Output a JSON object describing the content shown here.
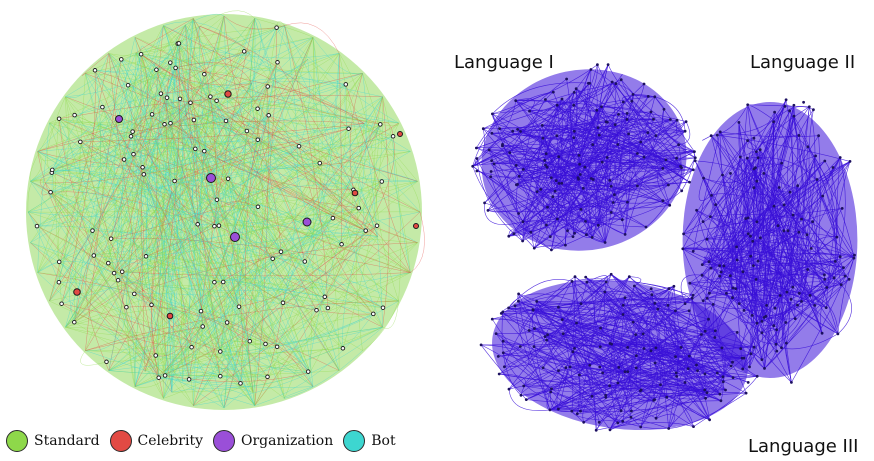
{
  "left_network": {
    "legend": [
      {
        "label": "Standard",
        "color": "#8ed84a"
      },
      {
        "label": "Celebrity",
        "color": "#e24a44"
      },
      {
        "label": "Organization",
        "color": "#9a4fd8"
      },
      {
        "label": "Bot",
        "color": "#3dd6d0"
      }
    ]
  },
  "right_network": {
    "edge_color": "#3a10d8",
    "node_color": "#1c1060",
    "clusters": [
      {
        "label": "Language I"
      },
      {
        "label": "Language II"
      },
      {
        "label": "Language III"
      }
    ]
  }
}
